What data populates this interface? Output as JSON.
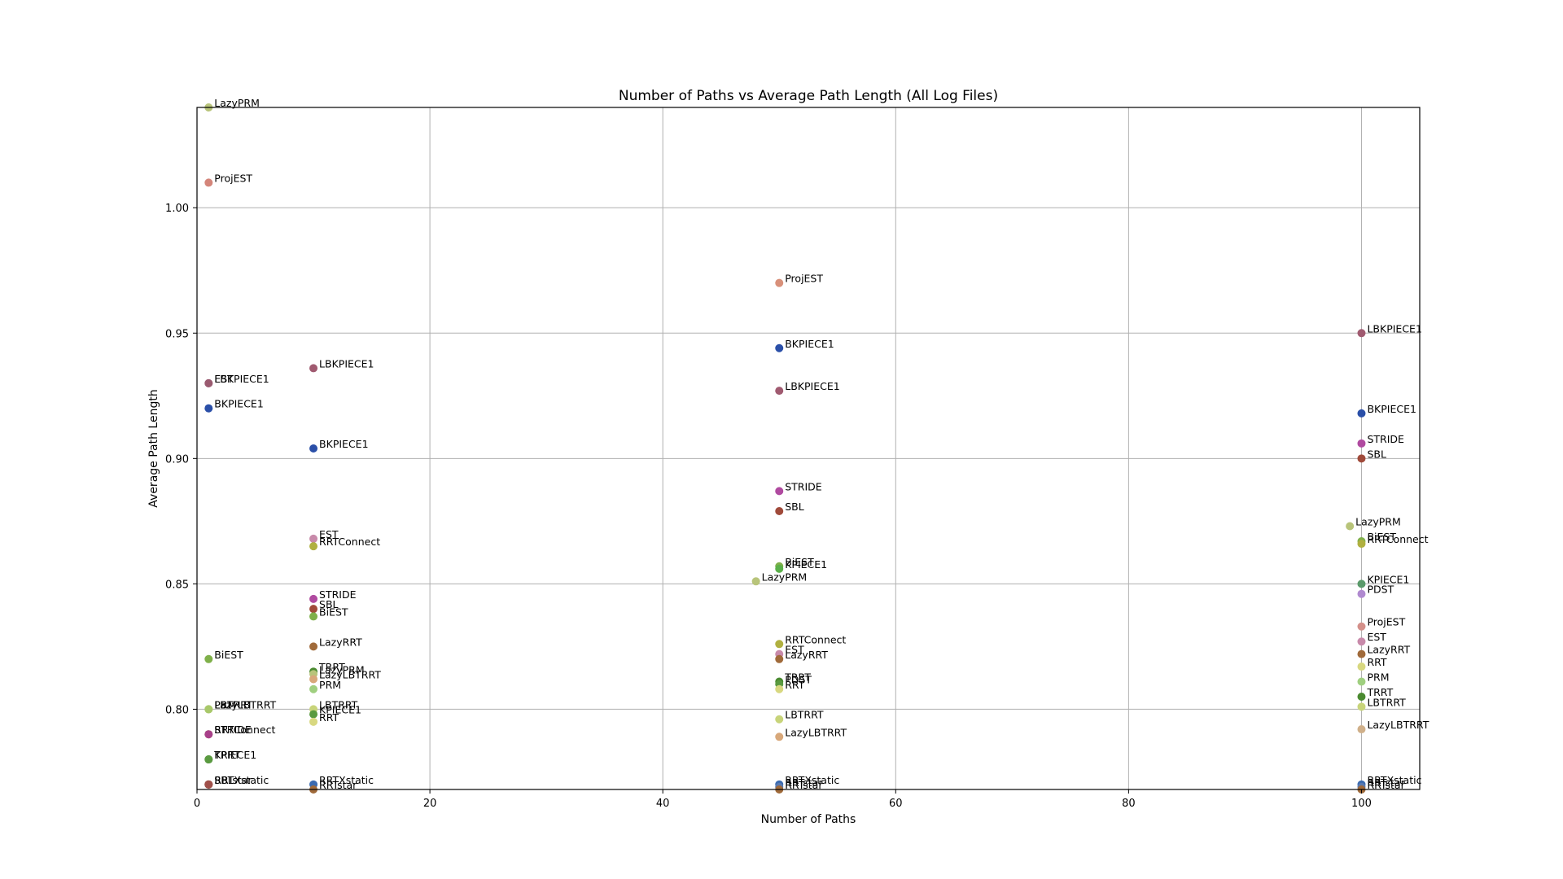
{
  "chart_data": {
    "type": "scatter",
    "title": "Number of Paths vs Average Path Length (All Log Files)",
    "xlabel": "Number of Paths",
    "ylabel": "Average Path Length",
    "xlim": [
      0,
      105
    ],
    "ylim": [
      0.768,
      1.04
    ],
    "xticks": [
      0,
      20,
      40,
      60,
      80,
      100
    ],
    "xtick_labels": [
      "0",
      "20",
      "40",
      "60",
      "80",
      "100"
    ],
    "yticks": [
      0.8,
      0.85,
      0.9,
      0.95,
      1.0
    ],
    "ytick_labels": [
      "0.80",
      "0.85",
      "0.90",
      "0.95",
      "1.00"
    ],
    "grid": true,
    "points": [
      {
        "x": 1,
        "y": 1.04,
        "label": "LazyPRM",
        "color": "#b8c47a"
      },
      {
        "x": 1,
        "y": 1.01,
        "label": "ProjEST",
        "color": "#d4857a"
      },
      {
        "x": 1,
        "y": 0.93,
        "label": "EST",
        "color": "#b07a9a"
      },
      {
        "x": 1,
        "y": 0.93,
        "label": "LBKPIECE1",
        "color": "#9a5a70"
      },
      {
        "x": 1,
        "y": 0.92,
        "label": "BKPIECE1",
        "color": "#2a4fa8"
      },
      {
        "x": 1,
        "y": 0.82,
        "label": "BiEST",
        "color": "#7fb04a"
      },
      {
        "x": 1,
        "y": 0.8,
        "label": "PRM",
        "color": "#9fcf7f"
      },
      {
        "x": 1,
        "y": 0.8,
        "label": "LBTRRT",
        "color": "#c8d47a"
      },
      {
        "x": 1,
        "y": 0.8,
        "label": "LazyLBTRRT",
        "color": "#a8c86a"
      },
      {
        "x": 1,
        "y": 0.79,
        "label": "RRTConnect",
        "color": "#a0a040"
      },
      {
        "x": 1,
        "y": 0.79,
        "label": "STRIDE",
        "color": "#a8408a"
      },
      {
        "x": 1,
        "y": 0.78,
        "label": "TRRT",
        "color": "#4a8a30"
      },
      {
        "x": 1,
        "y": 0.78,
        "label": "KPIECE1",
        "color": "#5a9a40"
      },
      {
        "x": 1,
        "y": 0.77,
        "label": "SBL",
        "color": "#a04a3a"
      },
      {
        "x": 1,
        "y": 0.77,
        "label": "RRTstar",
        "color": "#8a4a3a"
      },
      {
        "x": 1,
        "y": 0.77,
        "label": "RRTXstatic",
        "color": "#a0504a"
      },
      {
        "x": 10,
        "y": 0.936,
        "label": "LBKPIECE1",
        "color": "#a05a70"
      },
      {
        "x": 10,
        "y": 0.904,
        "label": "BKPIECE1",
        "color": "#2a4fa8"
      },
      {
        "x": 10,
        "y": 0.868,
        "label": "EST",
        "color": "#c88aaa"
      },
      {
        "x": 10,
        "y": 0.865,
        "label": "RRTConnect",
        "color": "#b0b040"
      },
      {
        "x": 10,
        "y": 0.844,
        "label": "STRIDE",
        "color": "#b04aa0"
      },
      {
        "x": 10,
        "y": 0.84,
        "label": "SBL",
        "color": "#a04a3a"
      },
      {
        "x": 10,
        "y": 0.837,
        "label": "BiEST",
        "color": "#7fb04a"
      },
      {
        "x": 10,
        "y": 0.825,
        "label": "LazyRRT",
        "color": "#a06a3a"
      },
      {
        "x": 10,
        "y": 0.815,
        "label": "TRRT",
        "color": "#4a8a30"
      },
      {
        "x": 10,
        "y": 0.814,
        "label": "LazyPRM",
        "color": "#b8c47a"
      },
      {
        "x": 10,
        "y": 0.812,
        "label": "LazyLBTRRT",
        "color": "#d8a87a"
      },
      {
        "x": 10,
        "y": 0.808,
        "label": "PRM",
        "color": "#9fcf7f"
      },
      {
        "x": 10,
        "y": 0.8,
        "label": "LBTRRT",
        "color": "#c8d47a"
      },
      {
        "x": 10,
        "y": 0.798,
        "label": "KPIECE1",
        "color": "#5a9a40"
      },
      {
        "x": 10,
        "y": 0.795,
        "label": "RRT",
        "color": "#d8d880"
      },
      {
        "x": 10,
        "y": 0.77,
        "label": "RRTXstatic",
        "color": "#3a6ab0"
      },
      {
        "x": 10,
        "y": 0.768,
        "label": "RRTstar",
        "color": "#a06a3a"
      },
      {
        "x": 50,
        "y": 0.97,
        "label": "ProjEST",
        "color": "#d8907a"
      },
      {
        "x": 50,
        "y": 0.944,
        "label": "BKPIECE1",
        "color": "#2a4fa8"
      },
      {
        "x": 50,
        "y": 0.927,
        "label": "LBKPIECE1",
        "color": "#a05a70"
      },
      {
        "x": 50,
        "y": 0.887,
        "label": "STRIDE",
        "color": "#b04aa0"
      },
      {
        "x": 50,
        "y": 0.879,
        "label": "SBL",
        "color": "#a04a3a"
      },
      {
        "x": 50,
        "y": 0.857,
        "label": "BiEST",
        "color": "#7fb04a"
      },
      {
        "x": 50,
        "y": 0.856,
        "label": "KPIECE1",
        "color": "#5ab04a"
      },
      {
        "x": 48,
        "y": 0.851,
        "label": "LazyPRM",
        "color": "#b8c47a"
      },
      {
        "x": 50,
        "y": 0.826,
        "label": "RRTConnect",
        "color": "#b0b040"
      },
      {
        "x": 50,
        "y": 0.822,
        "label": "EST",
        "color": "#c88aaa"
      },
      {
        "x": 50,
        "y": 0.82,
        "label": "LazyRRT",
        "color": "#a06a3a"
      },
      {
        "x": 50,
        "y": 0.811,
        "label": "TRRT",
        "color": "#4a8a30"
      },
      {
        "x": 50,
        "y": 0.81,
        "label": "PDST",
        "color": "#5a9a40"
      },
      {
        "x": 50,
        "y": 0.808,
        "label": "RRT",
        "color": "#d8d880"
      },
      {
        "x": 50,
        "y": 0.796,
        "label": "LBTRRT",
        "color": "#c8d47a"
      },
      {
        "x": 50,
        "y": 0.789,
        "label": "LazyLBTRRT",
        "color": "#d8a87a"
      },
      {
        "x": 50,
        "y": 0.77,
        "label": "RRTXstatic",
        "color": "#3a6ab0"
      },
      {
        "x": 50,
        "y": 0.769,
        "label": "RRTstar",
        "color": "#5a7ab0"
      },
      {
        "x": 50,
        "y": 0.768,
        "label": "RRTstar",
        "color": "#a06a3a"
      },
      {
        "x": 100,
        "y": 0.95,
        "label": "LBKPIECE1",
        "color": "#a05a70"
      },
      {
        "x": 100,
        "y": 0.918,
        "label": "BKPIECE1",
        "color": "#2a4fa8"
      },
      {
        "x": 100,
        "y": 0.906,
        "label": "STRIDE",
        "color": "#b04aa0"
      },
      {
        "x": 100,
        "y": 0.9,
        "label": "SBL",
        "color": "#a04a3a"
      },
      {
        "x": 99,
        "y": 0.873,
        "label": "LazyPRM",
        "color": "#b8c47a"
      },
      {
        "x": 100,
        "y": 0.867,
        "label": "BiEST",
        "color": "#7fb04a"
      },
      {
        "x": 100,
        "y": 0.866,
        "label": "RRTConnect",
        "color": "#b0b040"
      },
      {
        "x": 100,
        "y": 0.85,
        "label": "KPIECE1",
        "color": "#5a9a6a"
      },
      {
        "x": 100,
        "y": 0.846,
        "label": "PDST",
        "color": "#b08ad0"
      },
      {
        "x": 100,
        "y": 0.833,
        "label": "ProjEST",
        "color": "#d4908a"
      },
      {
        "x": 100,
        "y": 0.827,
        "label": "EST",
        "color": "#c88aaa"
      },
      {
        "x": 100,
        "y": 0.822,
        "label": "LazyRRT",
        "color": "#a06a3a"
      },
      {
        "x": 100,
        "y": 0.817,
        "label": "RRT",
        "color": "#d8d880"
      },
      {
        "x": 100,
        "y": 0.811,
        "label": "PRM",
        "color": "#9fcf7f"
      },
      {
        "x": 100,
        "y": 0.805,
        "label": "TRRT",
        "color": "#4a8a30"
      },
      {
        "x": 100,
        "y": 0.801,
        "label": "LBTRRT",
        "color": "#c8d47a"
      },
      {
        "x": 100,
        "y": 0.792,
        "label": "LazyLBTRRT",
        "color": "#d0b08a"
      },
      {
        "x": 100,
        "y": 0.77,
        "label": "RRTXstatic",
        "color": "#3a6ab0"
      },
      {
        "x": 100,
        "y": 0.769,
        "label": "RRTstar",
        "color": "#5a7ab0"
      },
      {
        "x": 100,
        "y": 0.768,
        "label": "RRTstar",
        "color": "#a06a3a"
      }
    ]
  }
}
